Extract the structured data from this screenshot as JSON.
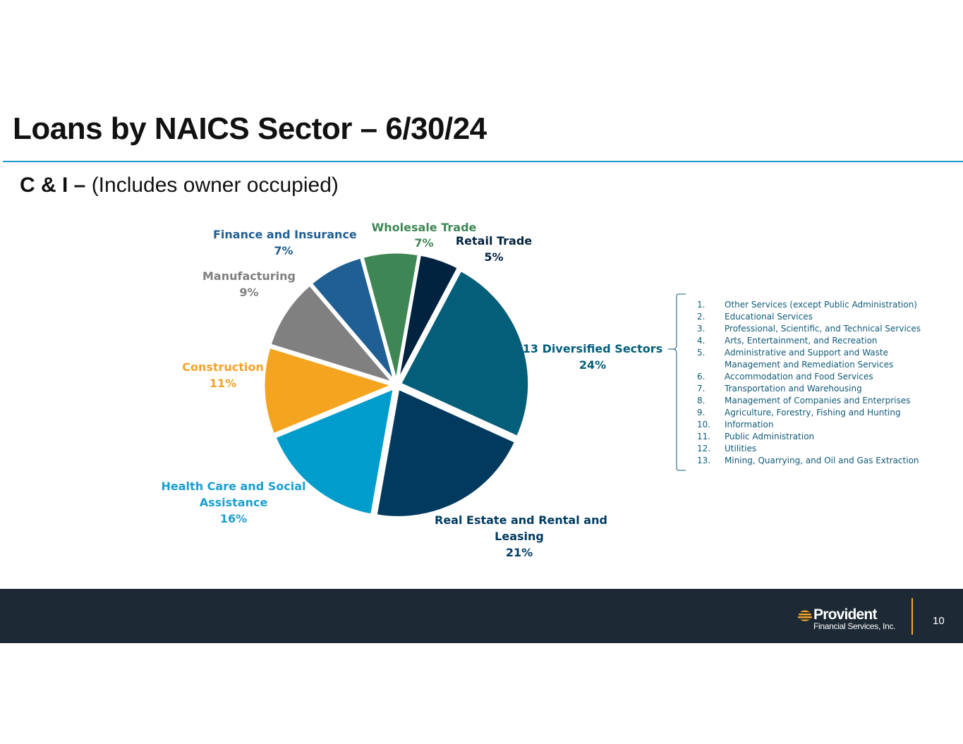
{
  "header": {
    "title": "Loans by NAICS Sector – 6/30/24",
    "subtitle_bold": "C & I –",
    "subtitle_rest": " (Includes owner occupied)"
  },
  "chart_data": {
    "type": "pie",
    "title": "",
    "slices": [
      {
        "name": "13 Diversified Sectors",
        "value": 24,
        "label": "24%",
        "color": "#035e7a"
      },
      {
        "name": "Real Estate and Rental and Leasing",
        "value": 21,
        "label": "21%",
        "color": "#013a5e"
      },
      {
        "name": "Health Care and Social Assistance",
        "value": 16,
        "label": "16%",
        "color": "#009ccc"
      },
      {
        "name": "Construction",
        "value": 11,
        "label": "11%",
        "color": "#f5a41f"
      },
      {
        "name": "Manufacturing",
        "value": 9,
        "label": "9%",
        "color": "#808080"
      },
      {
        "name": "Finance and Insurance",
        "value": 7,
        "label": "7%",
        "color": "#1f5f94"
      },
      {
        "name": "Wholesale Trade",
        "value": 7,
        "label": "7%",
        "color": "#3e8755"
      },
      {
        "name": "Retail Trade",
        "value": 5,
        "label": "5%",
        "color": "#02233f"
      }
    ],
    "label_colors": {
      "diversified": "#035e7a",
      "real_estate": "#013a5e",
      "health_care": "#1a9fd0",
      "construction": "#f3a22a",
      "manufacturing": "#7f7f7f",
      "finance": "#1f5f94",
      "wholesale": "#3e8755",
      "retail": "#02233f"
    },
    "labels": {
      "finance_line1": "Finance and Insurance",
      "wholesale_line1": "Wholesale Trade",
      "retail_line1": "Retail Trade",
      "manufacturing_line1": "Manufacturing",
      "diversified_line1": "13 Diversified Sectors",
      "construction_line1": "Construction",
      "health_line1": "Health Care and Social",
      "health_line2": "Assistance",
      "real_estate_line1": "Real Estate and Rental and",
      "real_estate_line2": "Leasing"
    }
  },
  "diversified_sectors": [
    {
      "num": "1.",
      "text": "Other Services (except Public Administration)"
    },
    {
      "num": "2.",
      "text": "Educational Services"
    },
    {
      "num": "3.",
      "text": "Professional, Scientific, and Technical Services"
    },
    {
      "num": "4.",
      "text": "Arts, Entertainment, and Recreation"
    },
    {
      "num": "5.",
      "text": "Administrative and Support and Waste Management and Remediation Services"
    },
    {
      "num": "6.",
      "text": "Accommodation and Food Services"
    },
    {
      "num": "7.",
      "text": "Transportation and Warehousing"
    },
    {
      "num": "8.",
      "text": "Management of Companies and Enterprises"
    },
    {
      "num": "9.",
      "text": "Agriculture, Forestry, Fishing and Hunting"
    },
    {
      "num": "10.",
      "text": "Information"
    },
    {
      "num": "11.",
      "text": "Public Administration"
    },
    {
      "num": "12.",
      "text": "Utilities"
    },
    {
      "num": "13.",
      "text": "Mining, Quarrying, and Oil and Gas Extraction"
    }
  ],
  "footer": {
    "logo_name": "Provident",
    "logo_sub": "Financial Services, Inc.",
    "page_number": "10",
    "accent_color": "#f5a623"
  }
}
